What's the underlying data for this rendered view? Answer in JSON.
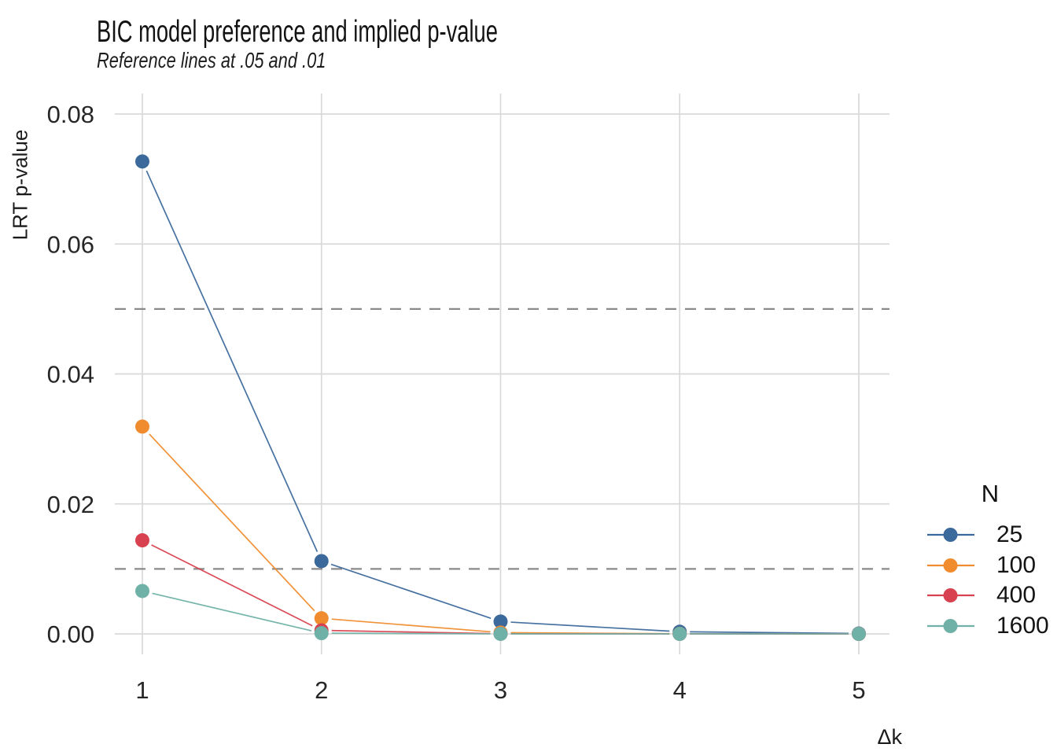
{
  "title": "BIC model preference and implied p-value",
  "subtitle": "Reference lines at .05 and .01",
  "axes": {
    "x_label": "Δk",
    "y_label": "LRT p-value",
    "x_ticks": [
      {
        "value": 1,
        "label": "1"
      },
      {
        "value": 2,
        "label": "2"
      },
      {
        "value": 3,
        "label": "3"
      },
      {
        "value": 4,
        "label": "4"
      },
      {
        "value": 5,
        "label": "5"
      }
    ],
    "y_ticks": [
      {
        "value": 0.0,
        "label": "0.00"
      },
      {
        "value": 0.02,
        "label": "0.02"
      },
      {
        "value": 0.04,
        "label": "0.04"
      },
      {
        "value": 0.06,
        "label": "0.06"
      },
      {
        "value": 0.08,
        "label": "0.08"
      }
    ]
  },
  "legend": {
    "title": "N",
    "position": "right"
  },
  "colors": {
    "gridline": "#D9D9D9",
    "reference_line": "#8A8A8A",
    "tick_text": "#262626",
    "background": "#FFFFFF"
  },
  "chart_data": {
    "type": "line",
    "title": "BIC model preference and implied p-value",
    "subtitle": "Reference lines at .05 and .01",
    "xlabel": "Δk",
    "ylabel": "LRT p-value",
    "x": [
      1,
      2,
      3,
      4,
      5
    ],
    "series": [
      {
        "name": "25",
        "color": "#3C699B",
        "values": [
          0.0727,
          0.0112,
          0.0019,
          0.00033,
          6e-05
        ]
      },
      {
        "name": "100",
        "color": "#F08C2E",
        "values": [
          0.0319,
          0.0024,
          0.0002,
          1.78e-05,
          1.6e-06
        ]
      },
      {
        "name": "400",
        "color": "#D8414F",
        "values": [
          0.0144,
          0.00054,
          2.24e-05,
          9.8e-07,
          4e-08
        ]
      },
      {
        "name": "1600",
        "color": "#6FB1A6",
        "values": [
          0.0066,
          0.00012,
          2.5e-06,
          6e-08,
          1e-09
        ]
      }
    ],
    "reference_lines": [
      0.05,
      0.01
    ],
    "ylim": [
      -0.0031,
      0.0831
    ],
    "xlim": [
      0.85,
      5.17
    ],
    "grid": true,
    "legend_position": "right"
  }
}
